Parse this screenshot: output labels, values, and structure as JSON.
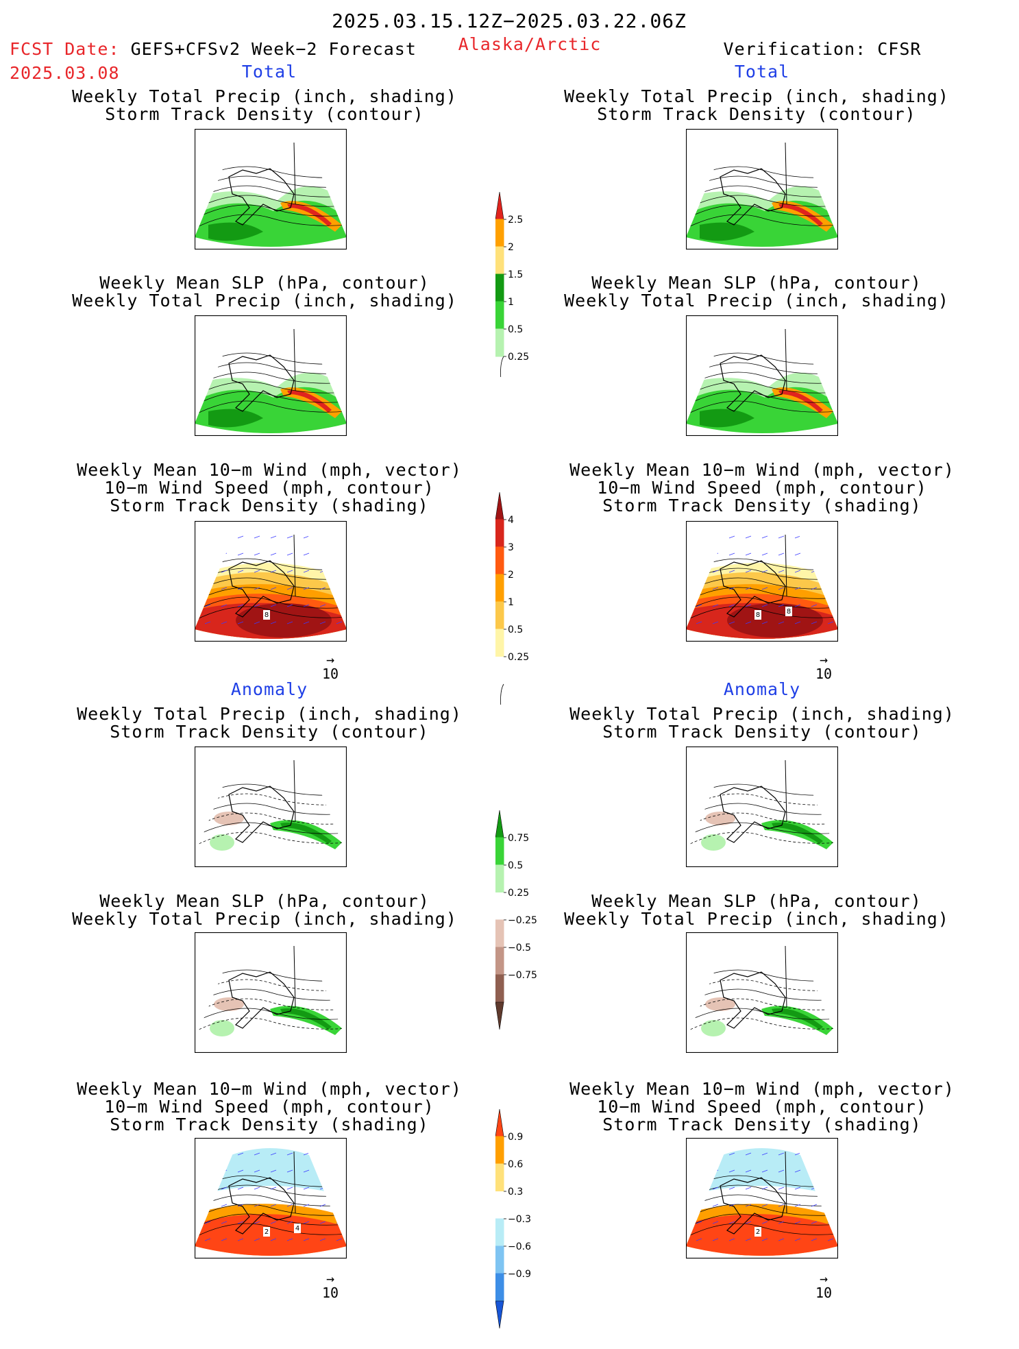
{
  "header": {
    "period": "2025.03.15.12Z−2025.03.22.06Z",
    "fcst_label": "FCST Date:",
    "fcst_model": "GEFS+CFSv2 Week−2 Forecast",
    "fcst_date": "2025.03.08",
    "region": "Alaska/Arctic",
    "verification": "Verification: CFSR"
  },
  "sections": {
    "total_left": "Total",
    "total_right": "Total",
    "anomaly_left": "Anomaly",
    "anomaly_right": "Anomaly"
  },
  "captions": {
    "precip_storm": [
      "Weekly Total Precip (inch, shading)",
      "Storm Track Density (contour)"
    ],
    "slp_precip": [
      "Weekly Mean SLP (hPa, contour)",
      "Weekly Total Precip (inch, shading)"
    ],
    "wind_storm": [
      "Weekly Mean 10−m Wind (mph, vector)",
      "10−m Wind Speed (mph, contour)",
      "Storm Track Density (shading)"
    ]
  },
  "vector_ref": {
    "arrow": "→",
    "label": "10"
  },
  "panel_labels": {
    "wind_total_left": [
      "8"
    ],
    "wind_total_right": [
      "8",
      "8"
    ],
    "wind_anom_left": [
      "2",
      "4"
    ],
    "wind_anom_right": [
      "2"
    ]
  },
  "colorbars": {
    "precip_total": {
      "labels": [
        "2.5",
        "2",
        "1.5",
        "1",
        "0.5",
        "0.25"
      ],
      "colors": [
        "#e0241e",
        "#ffa000",
        "#ffe17a",
        "#139a13",
        "#39d437",
        "#b6f2b0"
      ]
    },
    "storm_total": {
      "labels": [
        "4",
        "3",
        "2",
        "1",
        "0.5",
        "0.25"
      ],
      "colors": [
        "#a01414",
        "#d8261c",
        "#ff5a10",
        "#ff9f00",
        "#fcc84a",
        "#fff5a8",
        "#ffffff"
      ]
    },
    "precip_anom": {
      "labels": [
        "0.75",
        "0.5",
        "0.25",
        "−0.25",
        "−0.5",
        "−0.75"
      ],
      "colors": [
        "#139a13",
        "#39d437",
        "#b6f2b0",
        "#ffffff",
        "#e5c3b5",
        "#c39586",
        "#8f5f50",
        "#5f3a2d"
      ]
    },
    "storm_anom": {
      "labels": [
        "0.9",
        "0.6",
        "0.3",
        "−0.3",
        "−0.6",
        "−0.9"
      ],
      "colors": [
        "#ff4515",
        "#ff9f00",
        "#ffe17a",
        "#ffffff",
        "#b8ecf6",
        "#7ec4f2",
        "#3d8ee6",
        "#1755d6"
      ]
    }
  },
  "chart_data": [
    {
      "type": "heatmap",
      "title": "Weekly Total Precip (inch, shading) / Storm Track Density (contour)",
      "panel": "Total, GEFS+CFSv2 forecast"
    },
    {
      "type": "heatmap",
      "title": "Weekly Total Precip (inch, shading) / Storm Track Density (contour)",
      "panel": "Total, CFSR verification"
    },
    {
      "type": "heatmap",
      "title": "Weekly Mean SLP (hPa, contour) / Weekly Total Precip (inch, shading)",
      "panel": "Total, GEFS+CFSv2 forecast"
    },
    {
      "type": "heatmap",
      "title": "Weekly Mean SLP (hPa, contour) / Weekly Total Precip (inch, shading)",
      "panel": "Total, CFSR verification"
    },
    {
      "type": "heatmap",
      "title": "Weekly Mean 10-m Wind / 10-m Wind Speed / Storm Track Density (shading)",
      "panel": "Total, GEFS+CFSv2 forecast"
    },
    {
      "type": "heatmap",
      "title": "Weekly Mean 10-m Wind / 10-m Wind Speed / Storm Track Density (shading)",
      "panel": "Total, CFSR verification"
    },
    {
      "type": "heatmap",
      "title": "Weekly Total Precip (inch, shading) / Storm Track Density (contour)",
      "panel": "Anomaly, GEFS+CFSv2 forecast"
    },
    {
      "type": "heatmap",
      "title": "Weekly Total Precip (inch, shading) / Storm Track Density (contour)",
      "panel": "Anomaly, CFSR verification"
    },
    {
      "type": "heatmap",
      "title": "Weekly Mean SLP (hPa, contour) / Weekly Total Precip (inch, shading)",
      "panel": "Anomaly, GEFS+CFSv2 forecast"
    },
    {
      "type": "heatmap",
      "title": "Weekly Mean SLP (hPa, contour) / Weekly Total Precip (inch, shading)",
      "panel": "Anomaly, CFSR verification"
    },
    {
      "type": "heatmap",
      "title": "Weekly Mean 10-m Wind / 10-m Wind Speed / Storm Track Density (shading)",
      "panel": "Anomaly, GEFS+CFSv2 forecast"
    },
    {
      "type": "heatmap",
      "title": "Weekly Mean 10-m Wind / 10-m Wind Speed / Storm Track Density (shading)",
      "panel": "Anomaly, CFSR verification"
    }
  ]
}
